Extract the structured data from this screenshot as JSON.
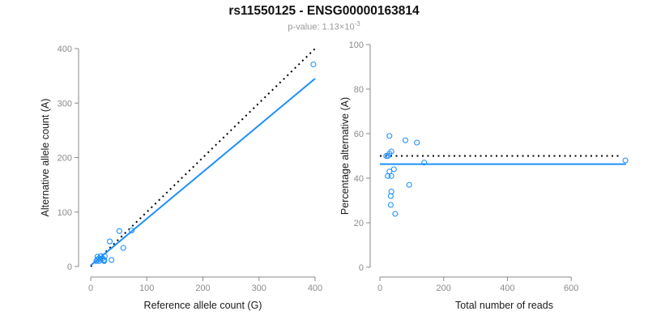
{
  "header": {
    "title": "rs11550125 - ENSG00000163814",
    "pvalue_label": "p-value:",
    "pvalue_base": "1.13×10",
    "pvalue_exponent": "-3"
  },
  "colors": {
    "accent_blue": "#1E90FF",
    "reference_black": "#000000",
    "axis_gray": "#8a8a8a",
    "tick_label_gray": "#8c8c8c",
    "axis_label_black": "#1a1a1a",
    "subtitle_gray": "#9a9a9a"
  },
  "chart_data": [
    {
      "type": "scatter",
      "name": "allele-count-scatter",
      "title": "",
      "xlabel": "Reference allele count (G)",
      "ylabel": "Alternative allele count (A)",
      "xlim": [
        0,
        400
      ],
      "ylim": [
        0,
        400
      ],
      "xticks": [
        0,
        100,
        200,
        300,
        400
      ],
      "yticks": [
        0,
        100,
        200,
        300,
        400
      ],
      "grid": false,
      "legend": null,
      "points": [
        [
          12,
          18
        ],
        [
          34,
          46
        ],
        [
          51,
          65
        ],
        [
          10,
          10
        ],
        [
          12,
          13
        ],
        [
          15,
          15
        ],
        [
          18,
          19
        ],
        [
          73,
          66
        ],
        [
          25,
          19
        ],
        [
          17,
          13
        ],
        [
          15,
          10
        ],
        [
          21,
          15
        ],
        [
          58,
          34
        ],
        [
          24,
          12
        ],
        [
          23,
          11
        ],
        [
          24,
          10
        ],
        [
          37,
          12
        ],
        [
          397,
          371
        ]
      ],
      "lines": [
        {
          "name": "identity-line",
          "style": "dotted",
          "color": "#000000",
          "x1": 0,
          "y1": 0,
          "x2": 400,
          "y2": 400
        },
        {
          "name": "fit-line",
          "style": "solid",
          "color": "#1E90FF",
          "x1": 0,
          "y1": 2,
          "x2": 400,
          "y2": 345
        }
      ]
    },
    {
      "type": "scatter",
      "name": "percentage-vs-reads-scatter",
      "title": "",
      "xlabel": "Total number of reads",
      "ylabel": "Percentage alternative (A)",
      "xlim": [
        0,
        780
      ],
      "ylim": [
        0,
        100
      ],
      "xticks": [
        0,
        200,
        400,
        600
      ],
      "yticks": [
        0,
        20,
        40,
        60,
        80,
        100
      ],
      "grid": false,
      "legend": null,
      "points": [
        [
          30,
          59
        ],
        [
          80,
          57
        ],
        [
          116,
          56
        ],
        [
          20,
          50
        ],
        [
          25,
          50
        ],
        [
          30,
          51
        ],
        [
          36,
          52
        ],
        [
          139,
          47
        ],
        [
          44,
          44
        ],
        [
          30,
          43
        ],
        [
          25,
          41
        ],
        [
          36,
          41
        ],
        [
          92,
          37
        ],
        [
          36,
          34
        ],
        [
          34,
          32
        ],
        [
          34,
          28
        ],
        [
          48,
          24
        ],
        [
          770,
          48
        ]
      ],
      "lines": [
        {
          "name": "expected-50pct-line",
          "style": "dotted",
          "color": "#000000",
          "x1": 0,
          "y1": 50,
          "x2": 752,
          "y2": 50
        },
        {
          "name": "mean-percentage-line",
          "style": "solid",
          "color": "#1E90FF",
          "x1": 0,
          "y1": 46.3,
          "x2": 772,
          "y2": 46.3
        }
      ]
    }
  ]
}
